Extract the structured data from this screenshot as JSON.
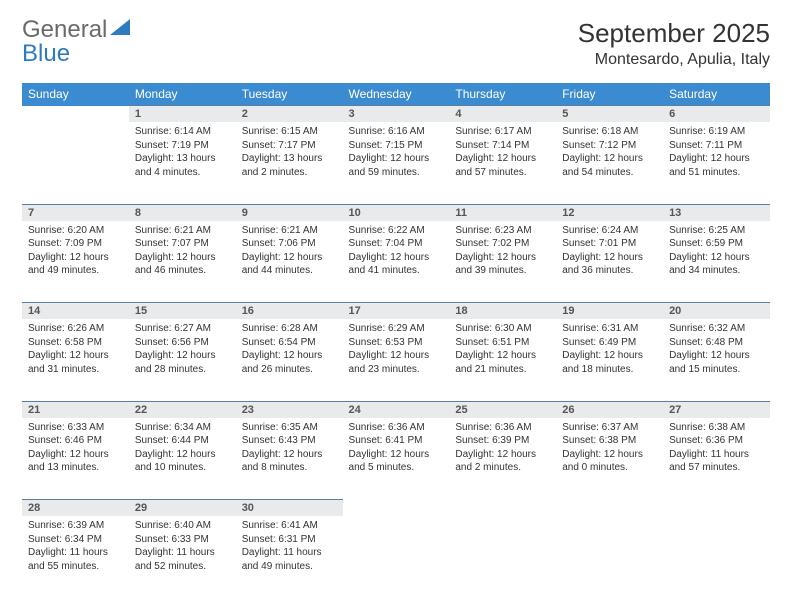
{
  "logo": {
    "word1": "General",
    "word2": "Blue"
  },
  "title": "September 2025",
  "location": "Montesardo, Apulia, Italy",
  "colors": {
    "header_bg": "#3b8bd0",
    "header_text": "#ffffff",
    "daynum_bg": "#e9eaeb",
    "daynum_border": "#5a7fa3",
    "logo_gray": "#6a6a6a",
    "logo_blue": "#2f7bc1"
  },
  "weekdays": [
    "Sunday",
    "Monday",
    "Tuesday",
    "Wednesday",
    "Thursday",
    "Friday",
    "Saturday"
  ],
  "weeks": [
    [
      null,
      {
        "n": "1",
        "sr": "Sunrise: 6:14 AM",
        "ss": "Sunset: 7:19 PM",
        "dl": "Daylight: 13 hours and 4 minutes."
      },
      {
        "n": "2",
        "sr": "Sunrise: 6:15 AM",
        "ss": "Sunset: 7:17 PM",
        "dl": "Daylight: 13 hours and 2 minutes."
      },
      {
        "n": "3",
        "sr": "Sunrise: 6:16 AM",
        "ss": "Sunset: 7:15 PM",
        "dl": "Daylight: 12 hours and 59 minutes."
      },
      {
        "n": "4",
        "sr": "Sunrise: 6:17 AM",
        "ss": "Sunset: 7:14 PM",
        "dl": "Daylight: 12 hours and 57 minutes."
      },
      {
        "n": "5",
        "sr": "Sunrise: 6:18 AM",
        "ss": "Sunset: 7:12 PM",
        "dl": "Daylight: 12 hours and 54 minutes."
      },
      {
        "n": "6",
        "sr": "Sunrise: 6:19 AM",
        "ss": "Sunset: 7:11 PM",
        "dl": "Daylight: 12 hours and 51 minutes."
      }
    ],
    [
      {
        "n": "7",
        "sr": "Sunrise: 6:20 AM",
        "ss": "Sunset: 7:09 PM",
        "dl": "Daylight: 12 hours and 49 minutes."
      },
      {
        "n": "8",
        "sr": "Sunrise: 6:21 AM",
        "ss": "Sunset: 7:07 PM",
        "dl": "Daylight: 12 hours and 46 minutes."
      },
      {
        "n": "9",
        "sr": "Sunrise: 6:21 AM",
        "ss": "Sunset: 7:06 PM",
        "dl": "Daylight: 12 hours and 44 minutes."
      },
      {
        "n": "10",
        "sr": "Sunrise: 6:22 AM",
        "ss": "Sunset: 7:04 PM",
        "dl": "Daylight: 12 hours and 41 minutes."
      },
      {
        "n": "11",
        "sr": "Sunrise: 6:23 AM",
        "ss": "Sunset: 7:02 PM",
        "dl": "Daylight: 12 hours and 39 minutes."
      },
      {
        "n": "12",
        "sr": "Sunrise: 6:24 AM",
        "ss": "Sunset: 7:01 PM",
        "dl": "Daylight: 12 hours and 36 minutes."
      },
      {
        "n": "13",
        "sr": "Sunrise: 6:25 AM",
        "ss": "Sunset: 6:59 PM",
        "dl": "Daylight: 12 hours and 34 minutes."
      }
    ],
    [
      {
        "n": "14",
        "sr": "Sunrise: 6:26 AM",
        "ss": "Sunset: 6:58 PM",
        "dl": "Daylight: 12 hours and 31 minutes."
      },
      {
        "n": "15",
        "sr": "Sunrise: 6:27 AM",
        "ss": "Sunset: 6:56 PM",
        "dl": "Daylight: 12 hours and 28 minutes."
      },
      {
        "n": "16",
        "sr": "Sunrise: 6:28 AM",
        "ss": "Sunset: 6:54 PM",
        "dl": "Daylight: 12 hours and 26 minutes."
      },
      {
        "n": "17",
        "sr": "Sunrise: 6:29 AM",
        "ss": "Sunset: 6:53 PM",
        "dl": "Daylight: 12 hours and 23 minutes."
      },
      {
        "n": "18",
        "sr": "Sunrise: 6:30 AM",
        "ss": "Sunset: 6:51 PM",
        "dl": "Daylight: 12 hours and 21 minutes."
      },
      {
        "n": "19",
        "sr": "Sunrise: 6:31 AM",
        "ss": "Sunset: 6:49 PM",
        "dl": "Daylight: 12 hours and 18 minutes."
      },
      {
        "n": "20",
        "sr": "Sunrise: 6:32 AM",
        "ss": "Sunset: 6:48 PM",
        "dl": "Daylight: 12 hours and 15 minutes."
      }
    ],
    [
      {
        "n": "21",
        "sr": "Sunrise: 6:33 AM",
        "ss": "Sunset: 6:46 PM",
        "dl": "Daylight: 12 hours and 13 minutes."
      },
      {
        "n": "22",
        "sr": "Sunrise: 6:34 AM",
        "ss": "Sunset: 6:44 PM",
        "dl": "Daylight: 12 hours and 10 minutes."
      },
      {
        "n": "23",
        "sr": "Sunrise: 6:35 AM",
        "ss": "Sunset: 6:43 PM",
        "dl": "Daylight: 12 hours and 8 minutes."
      },
      {
        "n": "24",
        "sr": "Sunrise: 6:36 AM",
        "ss": "Sunset: 6:41 PM",
        "dl": "Daylight: 12 hours and 5 minutes."
      },
      {
        "n": "25",
        "sr": "Sunrise: 6:36 AM",
        "ss": "Sunset: 6:39 PM",
        "dl": "Daylight: 12 hours and 2 minutes."
      },
      {
        "n": "26",
        "sr": "Sunrise: 6:37 AM",
        "ss": "Sunset: 6:38 PM",
        "dl": "Daylight: 12 hours and 0 minutes."
      },
      {
        "n": "27",
        "sr": "Sunrise: 6:38 AM",
        "ss": "Sunset: 6:36 PM",
        "dl": "Daylight: 11 hours and 57 minutes."
      }
    ],
    [
      {
        "n": "28",
        "sr": "Sunrise: 6:39 AM",
        "ss": "Sunset: 6:34 PM",
        "dl": "Daylight: 11 hours and 55 minutes."
      },
      {
        "n": "29",
        "sr": "Sunrise: 6:40 AM",
        "ss": "Sunset: 6:33 PM",
        "dl": "Daylight: 11 hours and 52 minutes."
      },
      {
        "n": "30",
        "sr": "Sunrise: 6:41 AM",
        "ss": "Sunset: 6:31 PM",
        "dl": "Daylight: 11 hours and 49 minutes."
      },
      null,
      null,
      null,
      null
    ]
  ]
}
